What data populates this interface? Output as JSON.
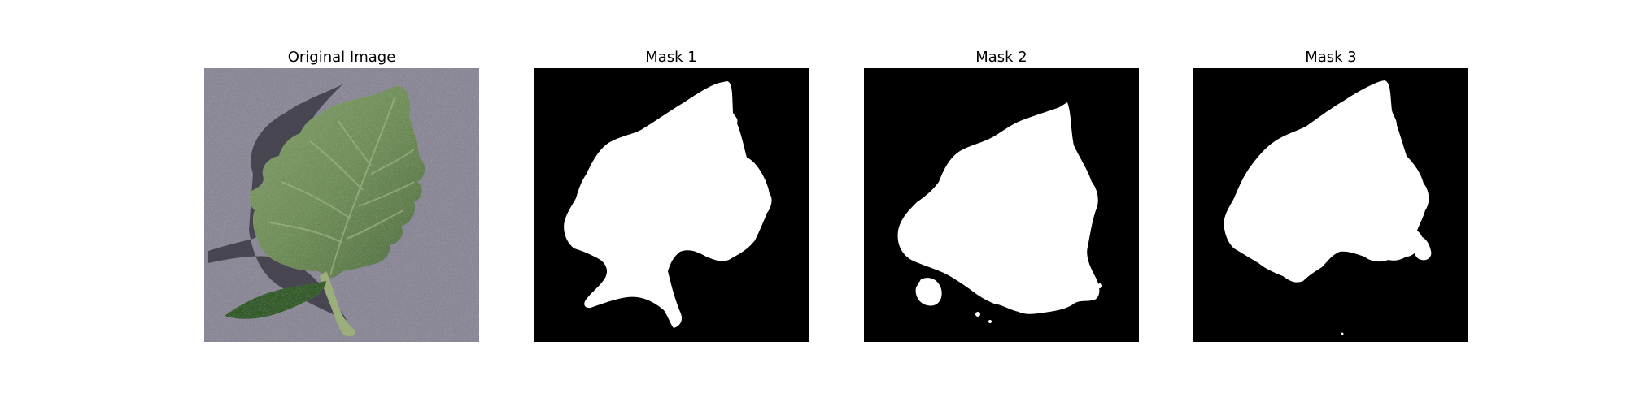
{
  "panels": [
    {
      "title": "Original Image",
      "kind": "photo"
    },
    {
      "title": "Mask 1",
      "kind": "mask"
    },
    {
      "title": "Mask 2",
      "kind": "mask"
    },
    {
      "title": "Mask 3",
      "kind": "mask"
    }
  ],
  "colors": {
    "background": "#ffffff",
    "mask_background": "#000000",
    "mask_foreground": "#ffffff",
    "photo_background": "#8a8796",
    "leaf_dark": "#4f6e3d",
    "leaf_light": "#8fa774",
    "small_leaf": "#2f5a24",
    "shadow": "#3b3944"
  }
}
